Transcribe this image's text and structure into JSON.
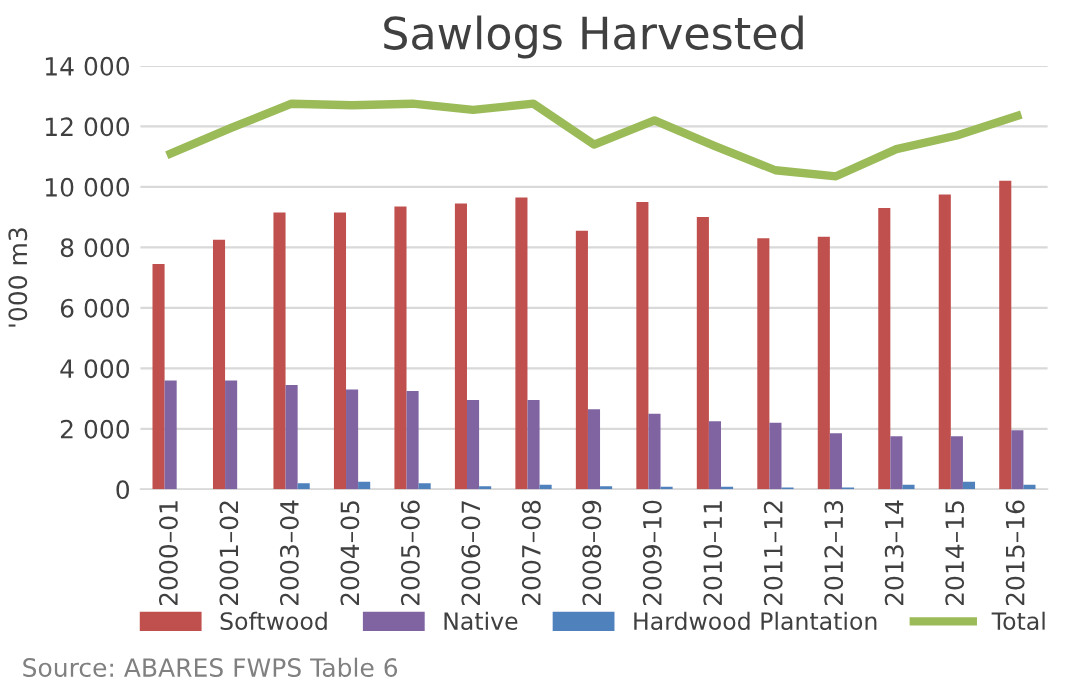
{
  "chart_data": {
    "type": "bar",
    "title": "Sawlogs Harvested",
    "ylabel": "'000 m3",
    "categories": [
      "2000–01",
      "2001–02",
      "2003–04",
      "2004–05",
      "2005–06",
      "2006–07",
      "2007–08",
      "2008–09",
      "2009–10",
      "2010–11",
      "2011–12",
      "2012–13",
      "2013–14",
      "2014–15",
      "2015–16"
    ],
    "series": [
      {
        "name": "Softwood",
        "color": "#c0504d",
        "values": [
          7450,
          8250,
          9150,
          9150,
          9350,
          9450,
          9650,
          8550,
          9500,
          9000,
          8300,
          8350,
          9300,
          9750,
          10200
        ]
      },
      {
        "name": "Native",
        "color": "#8064a2",
        "values": [
          3600,
          3600,
          3450,
          3300,
          3250,
          2950,
          2950,
          2650,
          2500,
          2250,
          2200,
          1850,
          1750,
          1750,
          1950
        ]
      },
      {
        "name": "Hardwood Plantation",
        "color": "#4f81bd",
        "values": [
          0,
          0,
          200,
          250,
          200,
          100,
          150,
          100,
          80,
          80,
          60,
          60,
          150,
          250,
          150
        ]
      },
      {
        "name": "Total",
        "type": "line",
        "color": "#9bbb59",
        "values": [
          11100,
          11950,
          12750,
          12700,
          12750,
          12550,
          12750,
          11400,
          12200,
          11350,
          10550,
          10350,
          11250,
          11700,
          12350
        ]
      }
    ],
    "ylim": [
      0,
      14000
    ],
    "yticks": [
      {
        "value": 0,
        "label": "0"
      },
      {
        "value": 2000,
        "label": "2 000"
      },
      {
        "value": 4000,
        "label": "4 000"
      },
      {
        "value": 6000,
        "label": "6 000"
      },
      {
        "value": 8000,
        "label": "8 000"
      },
      {
        "value": 10000,
        "label": "10 000"
      },
      {
        "value": 12000,
        "label": "12 000"
      },
      {
        "value": 14000,
        "label": "14 000"
      }
    ],
    "grid": "y",
    "legend": "bottom",
    "annotations": [
      "Source: ABARES FWPS Table 6"
    ]
  }
}
